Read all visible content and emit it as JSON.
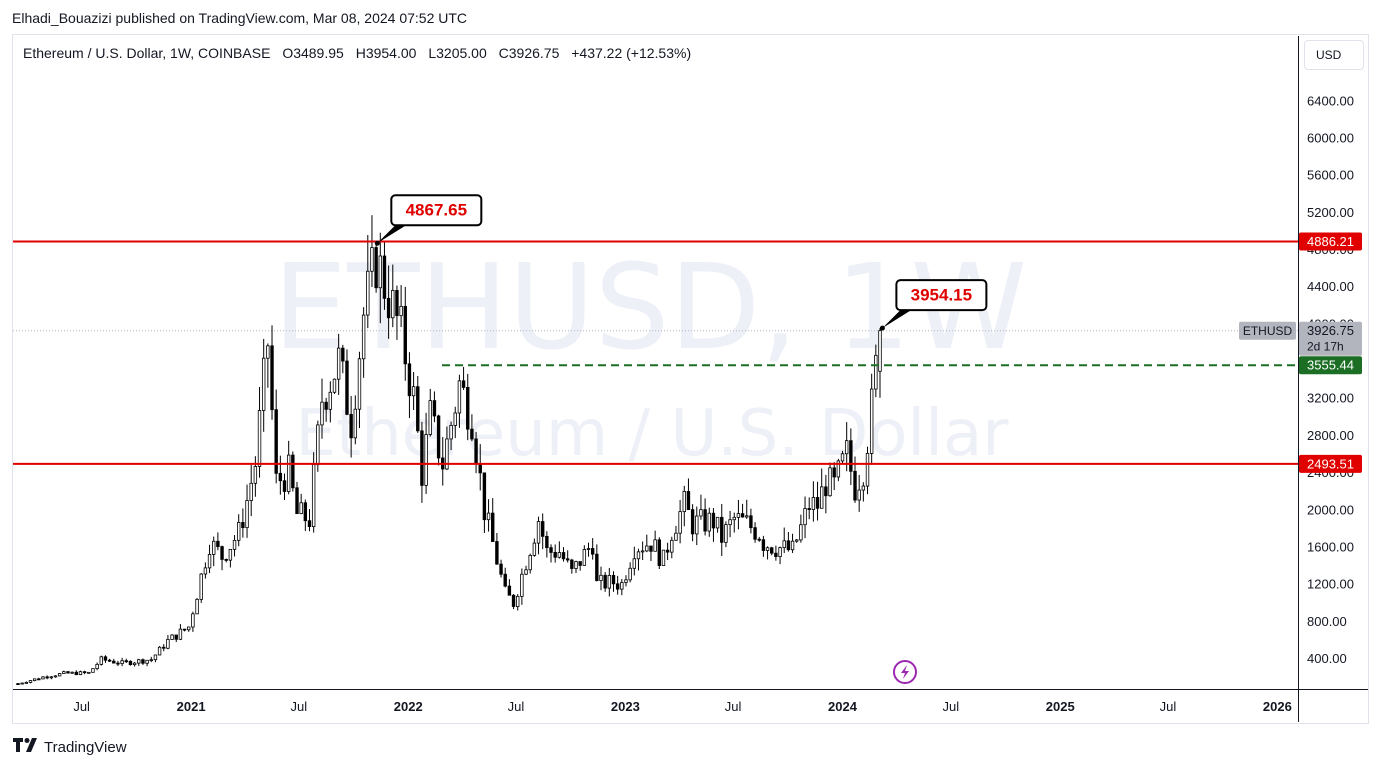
{
  "header": {
    "published": "Elhadi_Bouazizi published on TradingView.com, Mar 08, 2024 07:52 UTC"
  },
  "legend": {
    "symbol": "Ethereum / U.S. Dollar, 1W, COINBASE",
    "open_label": "O",
    "open": "3489.95",
    "high_label": "H",
    "high": "3954.00",
    "low_label": "L",
    "low": "3205.00",
    "close_label": "C",
    "close": "3926.75",
    "change": "+437.22 (+12.53%)"
  },
  "currency_button": "USD",
  "footer": {
    "brand": "TradingView"
  },
  "chart_data": {
    "type": "candlestick",
    "symbol": "ETHUSD",
    "interval": "1W",
    "exchange": "COINBASE",
    "watermark": {
      "symbol": "ETHUSD, 1W",
      "name": "Ethereum / U.S. Dollar"
    },
    "y_ticks": [
      "400.00",
      "800.00",
      "1200.00",
      "1600.00",
      "2000.00",
      "2400.00",
      "2800.00",
      "3200.00",
      "3600.00",
      "4000.00",
      "4400.00",
      "4800.00",
      "5200.00",
      "5600.00",
      "6000.00",
      "6400.00"
    ],
    "x_ticks": [
      "Jul",
      "2021",
      "Jul",
      "2022",
      "Jul",
      "2023",
      "Jul",
      "2024",
      "Jul",
      "2025",
      "Jul",
      "2026"
    ],
    "ylim": [
      130,
      6800
    ],
    "colors": {
      "up": "#ffffff",
      "down": "#000000",
      "outline": "#000000",
      "resistance": "#e00000",
      "dashed": "#1b6e24",
      "annotation": "#e00000",
      "price_tag": "#b2b5be",
      "current_price_tag_text": "#131722"
    },
    "horizontal_lines": [
      {
        "price": 4886.21,
        "label": "4886.21",
        "style": "solid",
        "color": "#e00000"
      },
      {
        "price": 2493.51,
        "label": "2493.51",
        "style": "solid",
        "color": "#e00000"
      },
      {
        "price": 3555.44,
        "label": "3555.44",
        "style": "dashed",
        "color": "#1b6e24"
      }
    ],
    "annotations": [
      {
        "text": "4867.65",
        "date": "2021-11-10",
        "price": 4867.65
      },
      {
        "text": "3954.15",
        "date": "2024-03-08",
        "price": 3954.15
      }
    ],
    "current_price": {
      "symbol_label": "ETHUSD",
      "price": "3926.75",
      "countdown": "2d 17h"
    },
    "event_marker": {
      "date": "2024-04-15",
      "icon": "lightning-icon"
    },
    "anchors": [
      [
        "2020-03-16",
        130
      ],
      [
        "2020-04-27",
        200
      ],
      [
        "2020-06-01",
        240
      ],
      [
        "2020-07-13",
        245
      ],
      [
        "2020-08-03",
        390
      ],
      [
        "2020-09-07",
        350
      ],
      [
        "2020-10-26",
        390
      ],
      [
        "2020-11-23",
        590
      ],
      [
        "2020-12-28",
        740
      ],
      [
        "2021-01-11",
        1100
      ],
      [
        "2021-02-01",
        1650
      ],
      [
        "2021-02-22",
        1500
      ],
      [
        "2021-03-22",
        1750
      ],
      [
        "2021-04-05",
        2100
      ],
      [
        "2021-04-19",
        2500
      ],
      [
        "2021-05-10",
        3800
      ],
      [
        "2021-05-24",
        2300
      ],
      [
        "2021-06-14",
        2400
      ],
      [
        "2021-06-28",
        1950
      ],
      [
        "2021-07-19",
        1900
      ],
      [
        "2021-08-09",
        3200
      ],
      [
        "2021-09-06",
        3600
      ],
      [
        "2021-09-27",
        2950
      ],
      [
        "2021-10-18",
        4100
      ],
      [
        "2021-11-08",
        4700
      ],
      [
        "2021-11-29",
        4300
      ],
      [
        "2021-12-20",
        3900
      ],
      [
        "2022-01-10",
        3200
      ],
      [
        "2022-01-24",
        2400
      ],
      [
        "2022-02-07",
        3000
      ],
      [
        "2022-02-28",
        2500
      ],
      [
        "2022-03-28",
        3350
      ],
      [
        "2022-04-18",
        3000
      ],
      [
        "2022-05-09",
        2000
      ],
      [
        "2022-06-13",
        1100
      ],
      [
        "2022-06-27",
        1000
      ],
      [
        "2022-07-25",
        1600
      ],
      [
        "2022-08-08",
        1900
      ],
      [
        "2022-08-22",
        1550
      ],
      [
        "2022-09-12",
        1550
      ],
      [
        "2022-10-03",
        1320
      ],
      [
        "2022-11-07",
        1650
      ],
      [
        "2022-11-14",
        1200
      ],
      [
        "2022-12-12",
        1220
      ],
      [
        "2022-12-26",
        1200
      ],
      [
        "2023-01-16",
        1600
      ],
      [
        "2023-02-13",
        1650
      ],
      [
        "2023-03-06",
        1450
      ],
      [
        "2023-03-20",
        1780
      ],
      [
        "2023-04-10",
        2050
      ],
      [
        "2023-04-24",
        1850
      ],
      [
        "2023-05-29",
        1880
      ],
      [
        "2023-06-12",
        1700
      ],
      [
        "2023-07-03",
        1900
      ],
      [
        "2023-07-24",
        1850
      ],
      [
        "2023-08-14",
        1750
      ],
      [
        "2023-08-21",
        1650
      ],
      [
        "2023-09-11",
        1600
      ],
      [
        "2023-10-09",
        1560
      ],
      [
        "2023-10-23",
        1800
      ],
      [
        "2023-11-06",
        2050
      ],
      [
        "2023-11-20",
        2050
      ],
      [
        "2023-12-04",
        2300
      ],
      [
        "2023-12-18",
        2250
      ],
      [
        "2024-01-08",
        2600
      ],
      [
        "2024-01-22",
        2250
      ],
      [
        "2024-02-05",
        2450
      ],
      [
        "2024-02-19",
        3100
      ],
      [
        "2024-03-04",
        3926.75
      ]
    ]
  }
}
